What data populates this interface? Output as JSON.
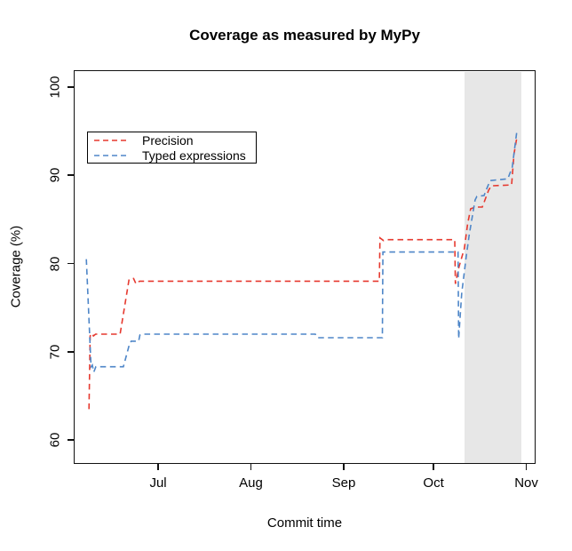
{
  "title": "Coverage as measured by MyPy",
  "axes": {
    "x_label": "Commit time",
    "y_label": "Coverage (%)"
  },
  "legend": {
    "items": [
      {
        "label": "Precision",
        "color": "#e6392f"
      },
      {
        "label": "Typed expressions",
        "color": "#4e86c8"
      }
    ]
  },
  "chart_data": {
    "type": "line",
    "title": "Coverage as measured by MyPy",
    "xlabel": "Commit time",
    "ylabel": "Coverage (%)",
    "grid": false,
    "legend_position": "upper-left",
    "x_unit": "days since Jun 1",
    "xlim": [
      1.8,
      156.1
    ],
    "ylim": [
      57.3,
      101.9
    ],
    "x_ticks": [
      {
        "label": "Jul",
        "day": 30
      },
      {
        "label": "Aug",
        "day": 61
      },
      {
        "label": "Sep",
        "day": 92
      },
      {
        "label": "Oct",
        "day": 122
      },
      {
        "label": "Nov",
        "day": 153
      }
    ],
    "y_ticks": [
      60,
      70,
      80,
      90,
      100
    ],
    "shaded_region": {
      "from_day": 132.3,
      "to_day": 151.3,
      "color": "#e7e7e7"
    },
    "series": [
      {
        "name": "Precision",
        "color": "#e6392f",
        "dash": [
          6.5,
          4.5
        ],
        "points": [
          [
            6.9,
            63.5
          ],
          [
            7.3,
            71.8
          ],
          [
            7.9,
            72.1
          ],
          [
            8.4,
            71.8
          ],
          [
            9.1,
            72.0
          ],
          [
            17.3,
            72.0
          ],
          [
            20.3,
            78.2
          ],
          [
            21.8,
            78.3
          ],
          [
            22.6,
            77.7
          ],
          [
            23.8,
            78.0
          ],
          [
            103.9,
            78.0
          ],
          [
            104.1,
            82.9
          ],
          [
            105.3,
            82.6
          ],
          [
            106.2,
            82.7
          ],
          [
            129.1,
            82.7
          ],
          [
            129.3,
            77.7
          ],
          [
            130.5,
            79.6
          ],
          [
            132.3,
            81.7
          ],
          [
            133.4,
            84.5
          ],
          [
            134.4,
            86.2
          ],
          [
            136.0,
            86.4
          ],
          [
            138.3,
            86.4
          ],
          [
            140.4,
            88.3
          ],
          [
            141.3,
            88.8
          ],
          [
            148.1,
            88.9
          ],
          [
            148.9,
            92.4
          ],
          [
            149.9,
            94.4
          ]
        ]
      },
      {
        "name": "Typed expressions",
        "color": "#4e86c8",
        "dash": [
          6.5,
          4.5
        ],
        "points": [
          [
            6.0,
            80.5
          ],
          [
            7.6,
            68.3
          ],
          [
            8.0,
            68.5
          ],
          [
            8.5,
            67.7
          ],
          [
            9.2,
            68.3
          ],
          [
            18.4,
            68.3
          ],
          [
            20.3,
            70.7
          ],
          [
            21.0,
            71.2
          ],
          [
            23.5,
            71.2
          ],
          [
            23.9,
            71.9
          ],
          [
            24.5,
            72.0
          ],
          [
            82.5,
            72.0
          ],
          [
            83.2,
            71.6
          ],
          [
            104.9,
            71.6
          ],
          [
            105.1,
            81.3
          ],
          [
            130.2,
            81.3
          ],
          [
            130.4,
            71.5
          ],
          [
            131.4,
            76.6
          ],
          [
            132.9,
            80.7
          ],
          [
            133.9,
            83.2
          ],
          [
            135.3,
            86.0
          ],
          [
            135.9,
            87.2
          ],
          [
            136.5,
            87.6
          ],
          [
            138.9,
            87.7
          ],
          [
            139.8,
            88.5
          ],
          [
            140.9,
            89.4
          ],
          [
            146.8,
            89.6
          ],
          [
            148.3,
            90.9
          ],
          [
            149.8,
            94.9
          ],
          [
            150.5,
            95.1
          ]
        ]
      }
    ]
  }
}
